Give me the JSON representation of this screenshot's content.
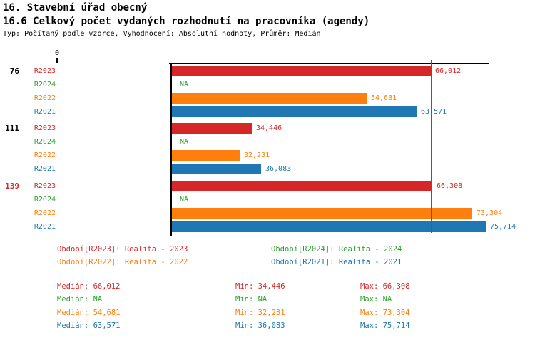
{
  "header": {
    "title": "16. Stavební úřad obecný",
    "subtitle": "16.6 Celkový počet vydaných rozhodnutí na pracovníka (agendy)",
    "meta": "Typ: Počítaný podle vzorce, Vyhodnocení: Absolutní hodnoty, Průměr: Medián"
  },
  "chart_data": {
    "type": "bar",
    "orientation": "horizontal",
    "title": "16.6 Celkový počet vydaných rozhodnutí na pracovníka (agendy)",
    "x_axis": {
      "origin_label": "0",
      "min": 0
    },
    "grid": false,
    "series": [
      {
        "id": "R2023",
        "name": "Realita - 2023",
        "color": "#d62728",
        "median": 66012,
        "min": 34446,
        "max": 66308
      },
      {
        "id": "R2024",
        "name": "Realita - 2024",
        "color": "#2ca02c",
        "median": null,
        "min": null,
        "max": null
      },
      {
        "id": "R2022",
        "name": "Realita - 2022",
        "color": "#ff7f0e",
        "median": 54681,
        "min": 32231,
        "max": 73304
      },
      {
        "id": "R2021",
        "name": "Realita - 2021",
        "color": "#1f77b4",
        "median": 63571,
        "min": 36083,
        "max": 75714
      }
    ],
    "groups": [
      {
        "label": "76",
        "label_color": "#000000",
        "bars": [
          {
            "series": "R2023",
            "value": 66012,
            "display": "66,012"
          },
          {
            "series": "R2024",
            "value": null,
            "display": "NA"
          },
          {
            "series": "R2022",
            "value": 54681,
            "display": "54,681"
          },
          {
            "series": "R2021",
            "value": 63571,
            "display": "63,571"
          }
        ]
      },
      {
        "label": "111",
        "label_color": "#000000",
        "bars": [
          {
            "series": "R2023",
            "value": 34446,
            "display": "34,446"
          },
          {
            "series": "R2024",
            "value": null,
            "display": "NA"
          },
          {
            "series": "R2022",
            "value": 32231,
            "display": "32,231"
          },
          {
            "series": "R2021",
            "value": 36083,
            "display": "36,083"
          }
        ]
      },
      {
        "label": "139",
        "label_color": "#d62728",
        "bars": [
          {
            "series": "R2023",
            "value": 66308,
            "display": "66,308"
          },
          {
            "series": "R2024",
            "value": null,
            "display": "NA"
          },
          {
            "series": "R2022",
            "value": 73304,
            "display": "73,304"
          },
          {
            "series": "R2021",
            "value": 75714,
            "display": "75,714"
          }
        ]
      }
    ],
    "reference_lines": [
      {
        "series": "R2022",
        "value": 54681,
        "color": "#ff7f0e"
      },
      {
        "series": "R2021",
        "value": 63571,
        "color": "#1f77b4"
      },
      {
        "series": "R2023",
        "value": 66012,
        "color": "#d62728"
      }
    ]
  },
  "legend": {
    "items": [
      {
        "series": "R2023",
        "label": "Období[R2023]: Realita - 2023",
        "color": "#d62728"
      },
      {
        "series": "R2024",
        "label": "Období[R2024]: Realita - 2024",
        "color": "#2ca02c"
      },
      {
        "series": "R2022",
        "label": "Období[R2022]: Realita - 2022",
        "color": "#ff7f0e"
      },
      {
        "series": "R2021",
        "label": "Období[R2021]: Realita - 2021",
        "color": "#1f77b4"
      }
    ]
  },
  "stats": {
    "median_label": "Medián",
    "min_label": "Min",
    "max_label": "Max",
    "rows": [
      {
        "series": "R2023",
        "color": "#d62728",
        "median": "66,012",
        "min": "34,446",
        "max": "66,308"
      },
      {
        "series": "R2024",
        "color": "#2ca02c",
        "median": "NA",
        "min": "NA",
        "max": "NA"
      },
      {
        "series": "R2022",
        "color": "#ff7f0e",
        "median": "54,681",
        "min": "32,231",
        "max": "73,304"
      },
      {
        "series": "R2021",
        "color": "#1f77b4",
        "median": "63,571",
        "min": "36,083",
        "max": "75,714"
      }
    ]
  }
}
